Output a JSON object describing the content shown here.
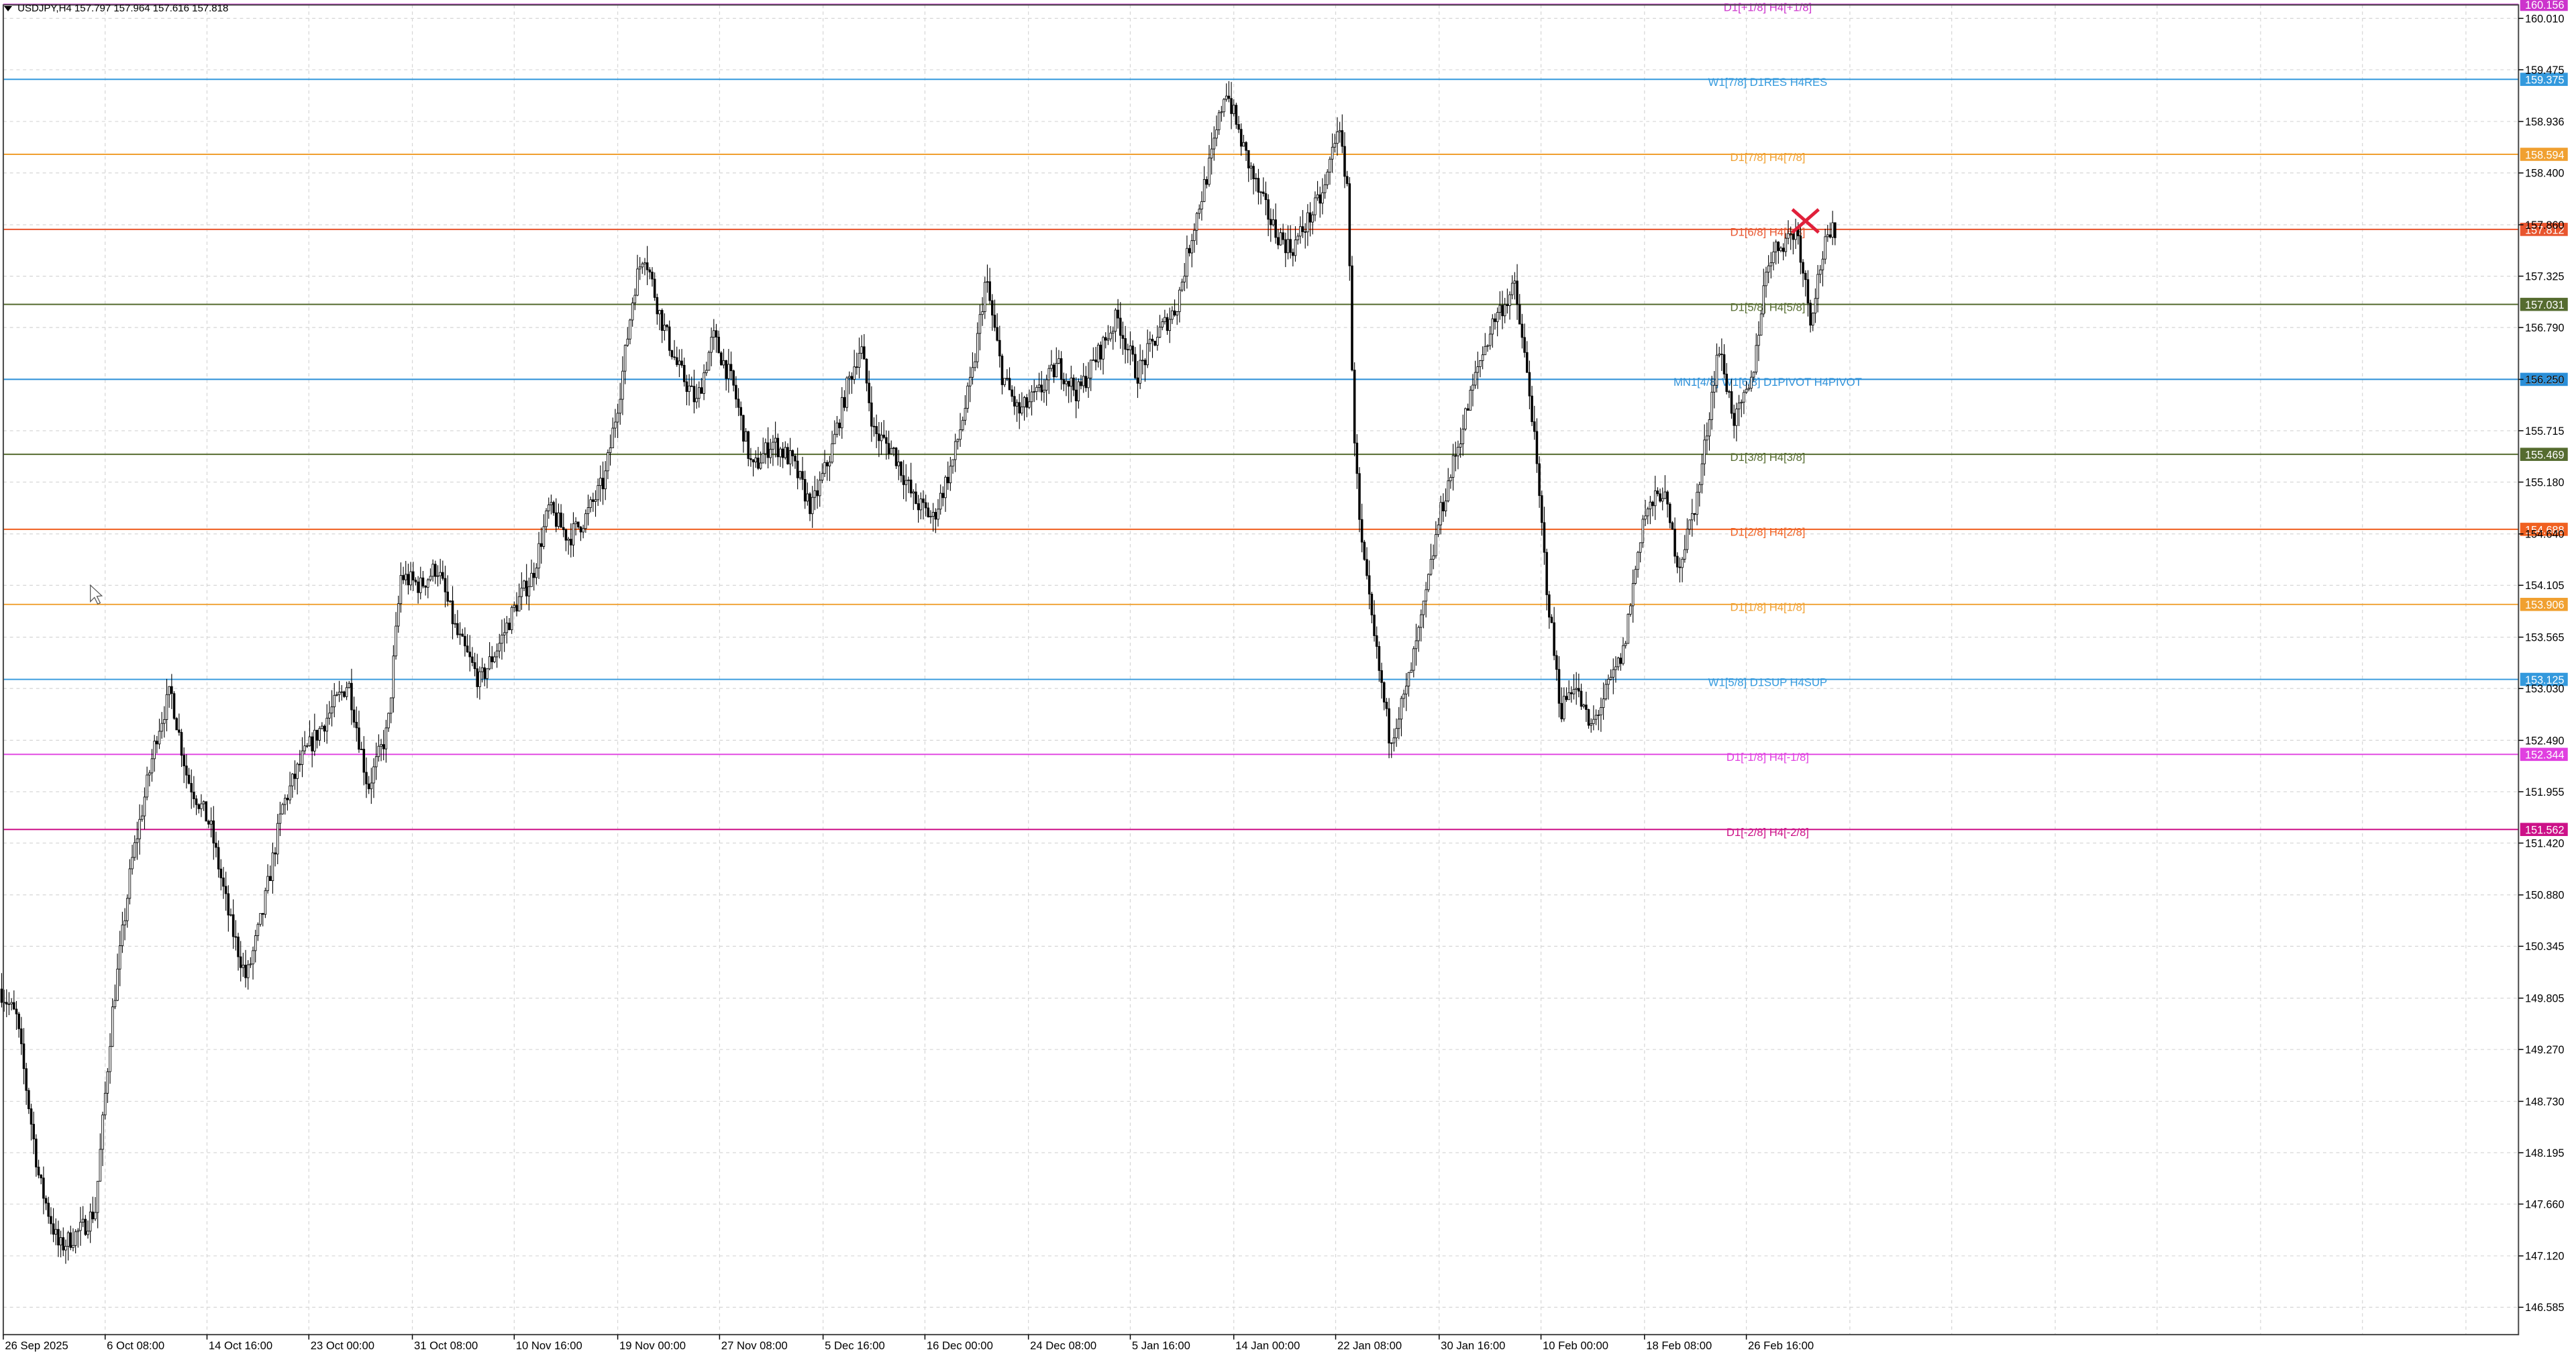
{
  "header": {
    "symbol": "USDJPY,H4",
    "ohlc": "157.797 157.964 157.616 157.818"
  },
  "chart_data": {
    "type": "candlestick",
    "symbol": "USDJPY",
    "timeframe": "H4",
    "ylim": [
      146.3,
      160.15
    ],
    "price_ticks": [
      "160.010",
      "159.475",
      "158.936",
      "158.400",
      "157.860",
      "157.325",
      "156.790",
      "156.250",
      "155.715",
      "155.180",
      "154.640",
      "154.105",
      "153.565",
      "153.030",
      "152.490",
      "151.955",
      "151.420",
      "150.880",
      "150.345",
      "149.805",
      "149.270",
      "148.730",
      "148.195",
      "147.660",
      "147.120",
      "146.585"
    ],
    "time_labels": [
      "26 Sep 2025",
      "6 Oct 08:00",
      "14 Oct 16:00",
      "23 Oct 00:00",
      "31 Oct 08:00",
      "10 Nov 16:00",
      "19 Nov 00:00",
      "27 Nov 08:00",
      "5 Dec 16:00",
      "16 Dec 00:00",
      "24 Dec 08:00",
      "5 Jan 16:00",
      "14 Jan 00:00",
      "22 Jan 08:00",
      "30 Jan 16:00",
      "10 Feb 00:00",
      "18 Feb 08:00",
      "26 Feb 16:00"
    ],
    "levels": [
      {
        "label": "D1[+1/8] H4[+1/8]",
        "price": "160.156",
        "value": 160.156,
        "color": "#cc33cc"
      },
      {
        "label": "W1[7/8] D1RES H4RES",
        "price": "159.375",
        "value": 159.375,
        "color": "#3399dd"
      },
      {
        "label": "D1[7/8] H4[7/8]",
        "price": "158.594",
        "value": 158.594,
        "color": "#f0a030"
      },
      {
        "label": "D1[6/8] H4[6/8]",
        "price": "157.812",
        "value": 157.812,
        "color": "#e8552e"
      },
      {
        "label": "D1[5/8] H4[5/8]",
        "price": "157.031",
        "value": 157.031,
        "color": "#556b2f"
      },
      {
        "label": "MN1[4/8] W1[6/8] D1PIVOT H4PIVOT",
        "price": "156.250",
        "value": 156.25,
        "color": "#2b8fd8"
      },
      {
        "label": "D1[3/8] H4[3/8]",
        "price": "155.469",
        "value": 155.469,
        "color": "#556b2f"
      },
      {
        "label": "D1[2/8] H4[2/8]",
        "price": "154.688",
        "value": 154.688,
        "color": "#f06020"
      },
      {
        "label": "D1[1/8] H4[1/8]",
        "price": "153.906",
        "value": 153.906,
        "color": "#f0a030"
      },
      {
        "label": "W1[5/8] D1SUP H4SUP",
        "price": "153.125",
        "value": 153.125,
        "color": "#3399dd"
      },
      {
        "label": "D1[-1/8] H4[-1/8]",
        "price": "152.344",
        "value": 152.344,
        "color": "#e040e0"
      },
      {
        "label": "D1[-2/8] H4[-2/8]",
        "price": "151.562",
        "value": 151.562,
        "color": "#cc1188"
      }
    ],
    "path_keypoints": [
      [
        0,
        149.9
      ],
      [
        10,
        149.6
      ],
      [
        24,
        147.9
      ],
      [
        36,
        147.2
      ],
      [
        50,
        147.4
      ],
      [
        58,
        147.6
      ],
      [
        68,
        149.6
      ],
      [
        80,
        151.2
      ],
      [
        96,
        152.6
      ],
      [
        104,
        153.0
      ],
      [
        114,
        152.1
      ],
      [
        128,
        151.6
      ],
      [
        140,
        150.6
      ],
      [
        150,
        150.0
      ],
      [
        160,
        150.7
      ],
      [
        172,
        151.8
      ],
      [
        184,
        152.3
      ],
      [
        198,
        152.7
      ],
      [
        212,
        153.1
      ],
      [
        224,
        152.0
      ],
      [
        236,
        152.6
      ],
      [
        244,
        154.2
      ],
      [
        256,
        154.1
      ],
      [
        266,
        154.3
      ],
      [
        278,
        153.6
      ],
      [
        292,
        153.1
      ],
      [
        304,
        153.5
      ],
      [
        314,
        153.9
      ],
      [
        324,
        154.2
      ],
      [
        334,
        154.9
      ],
      [
        346,
        154.6
      ],
      [
        356,
        154.8
      ],
      [
        368,
        155.2
      ],
      [
        378,
        156.2
      ],
      [
        386,
        157.2
      ],
      [
        392,
        157.6
      ],
      [
        402,
        156.9
      ],
      [
        412,
        156.4
      ],
      [
        424,
        156.0
      ],
      [
        434,
        156.7
      ],
      [
        446,
        156.2
      ],
      [
        458,
        155.3
      ],
      [
        470,
        155.6
      ],
      [
        482,
        155.4
      ],
      [
        494,
        154.9
      ],
      [
        506,
        155.5
      ],
      [
        516,
        156.2
      ],
      [
        524,
        156.6
      ],
      [
        532,
        155.7
      ],
      [
        544,
        155.5
      ],
      [
        556,
        155.0
      ],
      [
        568,
        154.8
      ],
      [
        580,
        155.4
      ],
      [
        592,
        156.3
      ],
      [
        600,
        157.3
      ],
      [
        610,
        156.3
      ],
      [
        620,
        155.9
      ],
      [
        632,
        156.1
      ],
      [
        644,
        156.4
      ],
      [
        656,
        156.1
      ],
      [
        668,
        156.5
      ],
      [
        680,
        156.9
      ],
      [
        692,
        156.3
      ],
      [
        704,
        156.7
      ],
      [
        716,
        157.0
      ],
      [
        726,
        157.8
      ],
      [
        738,
        158.6
      ],
      [
        746,
        159.3
      ],
      [
        756,
        158.7
      ],
      [
        766,
        158.2
      ],
      [
        776,
        157.8
      ],
      [
        786,
        157.6
      ],
      [
        796,
        157.9
      ],
      [
        806,
        158.2
      ],
      [
        814,
        158.9
      ],
      [
        820,
        158.3
      ],
      [
        824,
        155.8
      ],
      [
        828,
        154.6
      ],
      [
        836,
        153.6
      ],
      [
        846,
        152.5
      ],
      [
        856,
        153.0
      ],
      [
        866,
        153.8
      ],
      [
        876,
        154.8
      ],
      [
        888,
        155.6
      ],
      [
        900,
        156.4
      ],
      [
        910,
        156.9
      ],
      [
        922,
        157.2
      ],
      [
        932,
        156.0
      ],
      [
        942,
        154.0
      ],
      [
        950,
        152.8
      ],
      [
        958,
        153.1
      ],
      [
        968,
        152.6
      ],
      [
        978,
        153.0
      ],
      [
        988,
        153.4
      ],
      [
        1000,
        154.8
      ],
      [
        1012,
        155.1
      ],
      [
        1022,
        154.3
      ],
      [
        1034,
        155.1
      ],
      [
        1046,
        156.6
      ],
      [
        1056,
        155.8
      ],
      [
        1066,
        156.2
      ],
      [
        1076,
        157.5
      ],
      [
        1086,
        157.7
      ],
      [
        1094,
        157.8
      ],
      [
        1102,
        156.9
      ],
      [
        1110,
        157.6
      ],
      [
        1117,
        157.82
      ]
    ],
    "marker": {
      "type": "x",
      "near": "D1[6/8] H4[6/8]",
      "color": "#e0203a"
    }
  }
}
